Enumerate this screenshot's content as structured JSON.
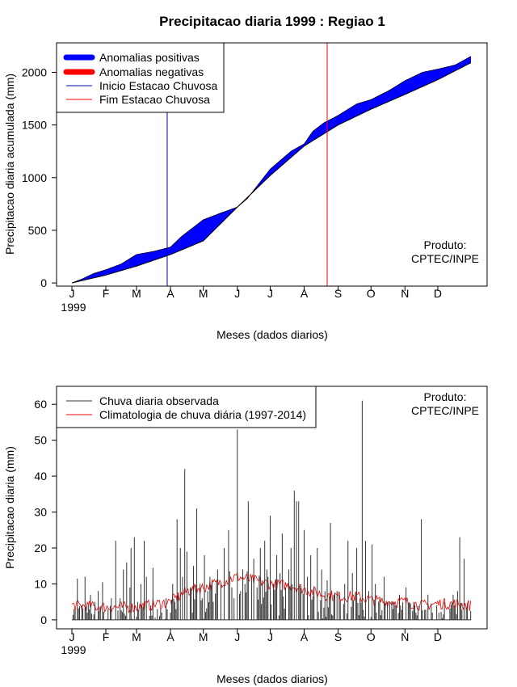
{
  "chart_data": [
    {
      "type": "area",
      "title": "Precipitacao diaria 1999 : Regiao 1",
      "xlabel": "Meses (dados diarios)",
      "ylabel": "Precipitacao diaria acumulada (mm)",
      "ylim": [
        -30,
        2280
      ],
      "yticks": [
        0,
        500,
        1000,
        1500,
        2000
      ],
      "xlim": [
        -14,
        379
      ],
      "months": [
        {
          "label": "J",
          "day": 0
        },
        {
          "label": "F",
          "day": 31
        },
        {
          "label": "M",
          "day": 59
        },
        {
          "label": "A",
          "day": 90
        },
        {
          "label": "M",
          "day": 120
        },
        {
          "label": "J",
          "day": 151
        },
        {
          "label": "J",
          "day": 181
        },
        {
          "label": "A",
          "day": 212
        },
        {
          "label": "S",
          "day": 243
        },
        {
          "label": "O",
          "day": 273
        },
        {
          "label": "N",
          "day": 304
        },
        {
          "label": "D",
          "day": 334
        }
      ],
      "year_label": "1999",
      "legend": {
        "position": "top-left",
        "entries": [
          {
            "label": "Anomalias positivas",
            "color": "#0000ff",
            "style": "thick"
          },
          {
            "label": "Anomalias negativas",
            "color": "#ff0000",
            "style": "thick"
          },
          {
            "label": "Inicio Estacao Chuvosa",
            "color": "#0000aa",
            "style": "thin"
          },
          {
            "label": "Fim Estacao Chuvosa",
            "color": "#ff0000",
            "style": "thin"
          }
        ]
      },
      "credit": [
        "Produto:",
        "CPTEC/INPE"
      ],
      "season_start_day": 87,
      "season_end_day": 233,
      "series": [
        {
          "name": "Climatologia acumulada",
          "points": [
            [
              0,
              0
            ],
            [
              31,
              75
            ],
            [
              59,
              160
            ],
            [
              90,
              270
            ],
            [
              120,
              400
            ],
            [
              151,
              720
            ],
            [
              181,
              1020
            ],
            [
              212,
              1300
            ],
            [
              243,
              1500
            ],
            [
              273,
              1650
            ],
            [
              304,
              1790
            ],
            [
              334,
              1930
            ],
            [
              364,
              2090
            ]
          ]
        },
        {
          "name": "Observada acumulada",
          "points": [
            [
              0,
              0
            ],
            [
              10,
              40
            ],
            [
              20,
              90
            ],
            [
              31,
              125
            ],
            [
              45,
              180
            ],
            [
              59,
              270
            ],
            [
              75,
              300
            ],
            [
              90,
              340
            ],
            [
              100,
              440
            ],
            [
              110,
              520
            ],
            [
              120,
              600
            ],
            [
              135,
              660
            ],
            [
              151,
              720
            ],
            [
              160,
              800
            ],
            [
              181,
              1080
            ],
            [
              200,
              1250
            ],
            [
              212,
              1320
            ],
            [
              220,
              1440
            ],
            [
              230,
              1520
            ],
            [
              243,
              1590
            ],
            [
              260,
              1700
            ],
            [
              273,
              1740
            ],
            [
              290,
              1830
            ],
            [
              304,
              1920
            ],
            [
              320,
              2000
            ],
            [
              334,
              2030
            ],
            [
              350,
              2070
            ],
            [
              364,
              2150
            ]
          ]
        }
      ]
    },
    {
      "type": "bar",
      "xlabel": "Meses (dados diarios)",
      "ylabel": "Precipitacao diaria (mm)",
      "ylim": [
        -2.5,
        65
      ],
      "yticks": [
        0,
        10,
        20,
        30,
        40,
        50,
        60
      ],
      "xlim": [
        -14,
        379
      ],
      "legend": {
        "position": "top-left",
        "entries": [
          {
            "label": "Chuva diaria observada",
            "color": "#333333"
          },
          {
            "label": "Climatologia de chuva diária (1997-2014)",
            "color": "#ff0000"
          }
        ]
      },
      "credit": [
        "Produto:",
        "CPTEC/INPE"
      ],
      "peaks": [
        [
          2,
          3
        ],
        [
          5,
          11.5
        ],
        [
          9,
          4
        ],
        [
          12,
          12
        ],
        [
          14,
          2
        ],
        [
          17,
          7
        ],
        [
          21,
          5
        ],
        [
          24,
          8
        ],
        [
          28,
          10.5
        ],
        [
          33,
          3
        ],
        [
          36,
          6
        ],
        [
          40,
          22
        ],
        [
          44,
          6
        ],
        [
          47,
          14
        ],
        [
          50,
          16
        ],
        [
          53,
          9
        ],
        [
          54,
          20
        ],
        [
          57,
          23
        ],
        [
          60,
          5
        ],
        [
          63,
          10
        ],
        [
          66,
          22
        ],
        [
          68,
          12
        ],
        [
          72,
          4
        ],
        [
          74,
          14.5
        ],
        [
          78,
          3
        ],
        [
          82,
          2
        ],
        [
          86,
          6
        ],
        [
          90,
          2
        ],
        [
          92,
          10
        ],
        [
          94,
          5
        ],
        [
          96,
          28
        ],
        [
          99,
          20
        ],
        [
          101,
          12
        ],
        [
          103,
          42
        ],
        [
          105,
          19
        ],
        [
          108,
          9
        ],
        [
          111,
          15
        ],
        [
          114,
          31
        ],
        [
          117,
          10
        ],
        [
          119,
          6
        ],
        [
          121,
          18
        ],
        [
          124,
          8
        ],
        [
          126,
          12
        ],
        [
          129,
          5
        ],
        [
          133,
          14
        ],
        [
          136,
          10
        ],
        [
          139,
          20
        ],
        [
          143,
          25
        ],
        [
          146,
          9
        ],
        [
          148,
          6
        ],
        [
          151,
          53
        ],
        [
          154,
          8
        ],
        [
          156,
          14
        ],
        [
          158,
          10
        ],
        [
          161,
          33
        ],
        [
          164,
          12
        ],
        [
          166,
          17
        ],
        [
          169,
          9
        ],
        [
          172,
          20
        ],
        [
          174,
          11
        ],
        [
          176,
          22
        ],
        [
          178,
          14
        ],
        [
          181,
          29
        ],
        [
          184,
          10
        ],
        [
          187,
          18
        ],
        [
          190,
          13
        ],
        [
          192,
          24
        ],
        [
          195,
          9
        ],
        [
          198,
          14
        ],
        [
          200,
          20
        ],
        [
          203,
          36
        ],
        [
          205,
          33
        ],
        [
          207,
          33
        ],
        [
          209,
          9
        ],
        [
          212,
          25
        ],
        [
          215,
          12
        ],
        [
          218,
          18
        ],
        [
          221,
          9
        ],
        [
          224,
          20
        ],
        [
          228,
          14
        ],
        [
          231,
          8
        ],
        [
          233,
          11
        ],
        [
          236,
          27
        ],
        [
          239,
          7
        ],
        [
          242,
          8
        ],
        [
          245,
          5
        ],
        [
          249,
          10
        ],
        [
          252,
          22
        ],
        [
          256,
          13
        ],
        [
          260,
          20
        ],
        [
          263,
          6
        ],
        [
          265,
          61
        ],
        [
          268,
          22
        ],
        [
          271,
          8
        ],
        [
          274,
          21
        ],
        [
          277,
          10
        ],
        [
          281,
          6
        ],
        [
          285,
          12
        ],
        [
          290,
          5
        ],
        [
          295,
          4
        ],
        [
          299,
          7
        ],
        [
          305,
          9
        ],
        [
          312,
          5
        ],
        [
          319,
          28
        ],
        [
          325,
          7
        ],
        [
          333,
          4
        ],
        [
          340,
          5
        ],
        [
          348,
          7
        ],
        [
          352,
          8
        ],
        [
          354,
          23
        ],
        [
          358,
          17
        ]
      ],
      "climatology_knots": [
        [
          0,
          4
        ],
        [
          31,
          3.5
        ],
        [
          59,
          3.5
        ],
        [
          90,
          5
        ],
        [
          105,
          8
        ],
        [
          120,
          9
        ],
        [
          151,
          12
        ],
        [
          165,
          11
        ],
        [
          181,
          10
        ],
        [
          200,
          9.5
        ],
        [
          212,
          8.5
        ],
        [
          230,
          7
        ],
        [
          243,
          6.5
        ],
        [
          260,
          6.5
        ],
        [
          273,
          5.5
        ],
        [
          290,
          5
        ],
        [
          304,
          5
        ],
        [
          320,
          4
        ],
        [
          334,
          4.5
        ],
        [
          350,
          4.5
        ],
        [
          364,
          4
        ]
      ]
    }
  ]
}
